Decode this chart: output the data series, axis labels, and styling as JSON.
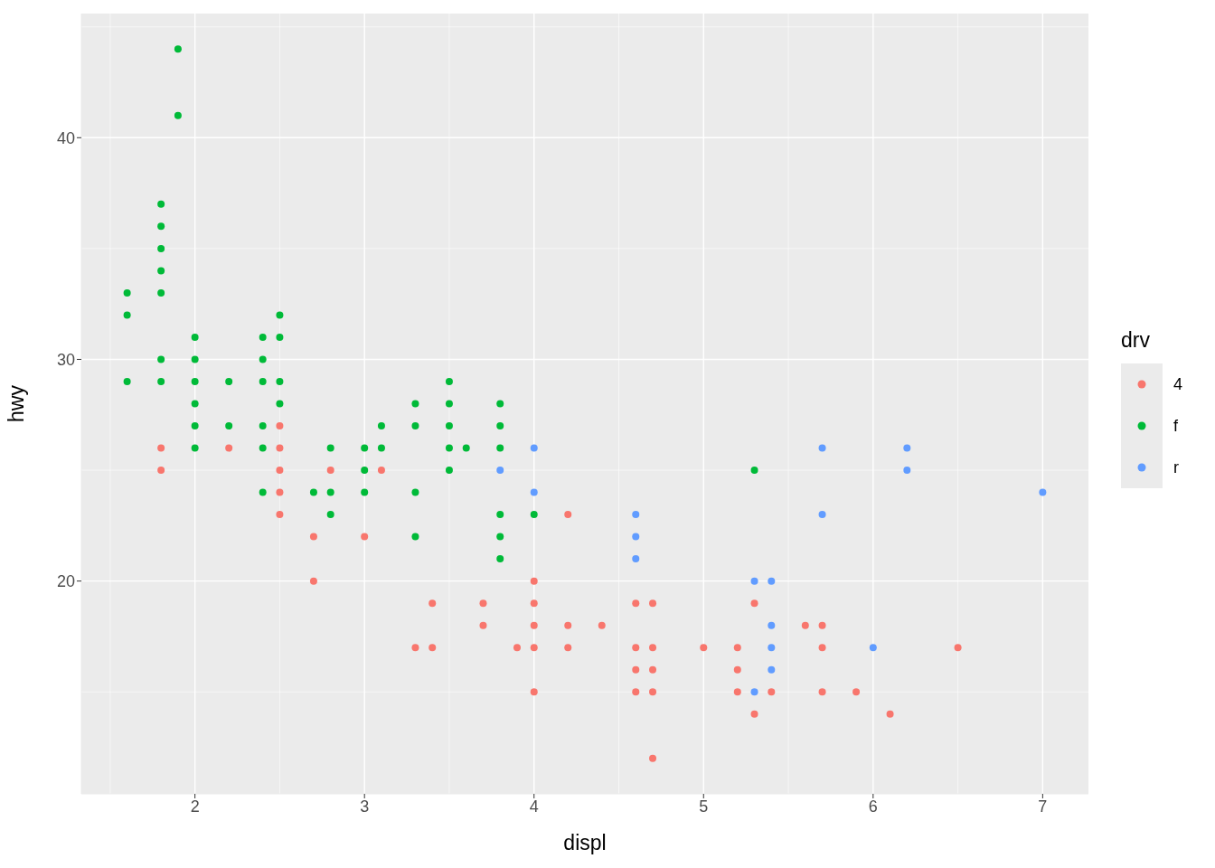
{
  "chart_data": {
    "type": "scatter",
    "xlabel": "displ",
    "ylabel": "hwy",
    "legend_title": "drv",
    "legend": "right",
    "grid": true,
    "marker": "circle",
    "xlim": [
      1.33,
      7.27
    ],
    "ylim": [
      10.4,
      45.6
    ],
    "xticks": [
      2,
      3,
      4,
      5,
      6,
      7
    ],
    "yticks": [
      20,
      30,
      40
    ],
    "series": [
      {
        "name": "4",
        "color": "#f8766d",
        "x": [
          1.8,
          1.8,
          2.2,
          2.5,
          2.5,
          2.5,
          2.5,
          2.5,
          2.7,
          2.7,
          2.8,
          3.0,
          3.1,
          3.3,
          3.4,
          3.4,
          3.7,
          3.7,
          3.9,
          4.0,
          4.0,
          4.0,
          4.0,
          4.0,
          4.2,
          4.2,
          4.2,
          4.4,
          4.6,
          4.6,
          4.6,
          4.6,
          4.7,
          4.7,
          4.7,
          4.7,
          4.7,
          5.0,
          5.2,
          5.2,
          5.2,
          5.3,
          5.3,
          5.4,
          5.6,
          5.7,
          5.7,
          5.7,
          5.9,
          6.1,
          6.5
        ],
        "values": [
          26,
          25,
          26,
          27,
          26,
          25,
          24,
          23,
          22,
          20,
          25,
          22,
          25,
          17,
          19,
          17,
          19,
          18,
          17,
          20,
          19,
          18,
          17,
          15,
          23,
          18,
          17,
          18,
          19,
          17,
          16,
          15,
          19,
          17,
          16,
          15,
          12,
          17,
          17,
          16,
          15,
          19,
          14,
          15,
          18,
          18,
          17,
          15,
          15,
          14,
          17
        ]
      },
      {
        "name": "f",
        "color": "#00ba38",
        "x": [
          1.6,
          1.6,
          1.6,
          1.8,
          1.8,
          1.8,
          1.8,
          1.8,
          1.8,
          1.8,
          1.9,
          1.9,
          2.0,
          2.0,
          2.0,
          2.0,
          2.0,
          2.0,
          2.2,
          2.2,
          2.4,
          2.4,
          2.4,
          2.4,
          2.4,
          2.4,
          2.5,
          2.5,
          2.5,
          2.5,
          2.7,
          2.8,
          2.8,
          2.8,
          3.0,
          3.0,
          3.0,
          3.1,
          3.1,
          3.3,
          3.3,
          3.3,
          3.3,
          3.5,
          3.5,
          3.5,
          3.5,
          3.5,
          3.6,
          3.8,
          3.8,
          3.8,
          3.8,
          3.8,
          3.8,
          4.0,
          5.3
        ],
        "values": [
          33,
          32,
          29,
          37,
          36,
          35,
          34,
          33,
          30,
          29,
          44,
          41,
          31,
          30,
          29,
          28,
          27,
          26,
          29,
          27,
          31,
          30,
          29,
          27,
          26,
          24,
          32,
          31,
          29,
          28,
          24,
          26,
          24,
          23,
          26,
          25,
          24,
          27,
          26,
          28,
          27,
          24,
          22,
          29,
          28,
          27,
          26,
          25,
          26,
          28,
          27,
          26,
          23,
          22,
          21,
          23,
          25
        ]
      },
      {
        "name": "r",
        "color": "#619cff",
        "x": [
          3.8,
          4.0,
          4.0,
          4.6,
          4.6,
          4.6,
          5.3,
          5.3,
          5.4,
          5.4,
          5.4,
          5.4,
          5.7,
          5.7,
          6.0,
          6.2,
          6.2,
          7.0
        ],
        "values": [
          25,
          26,
          24,
          23,
          22,
          21,
          20,
          15,
          20,
          18,
          17,
          16,
          26,
          23,
          17,
          26,
          25,
          24
        ]
      }
    ]
  }
}
